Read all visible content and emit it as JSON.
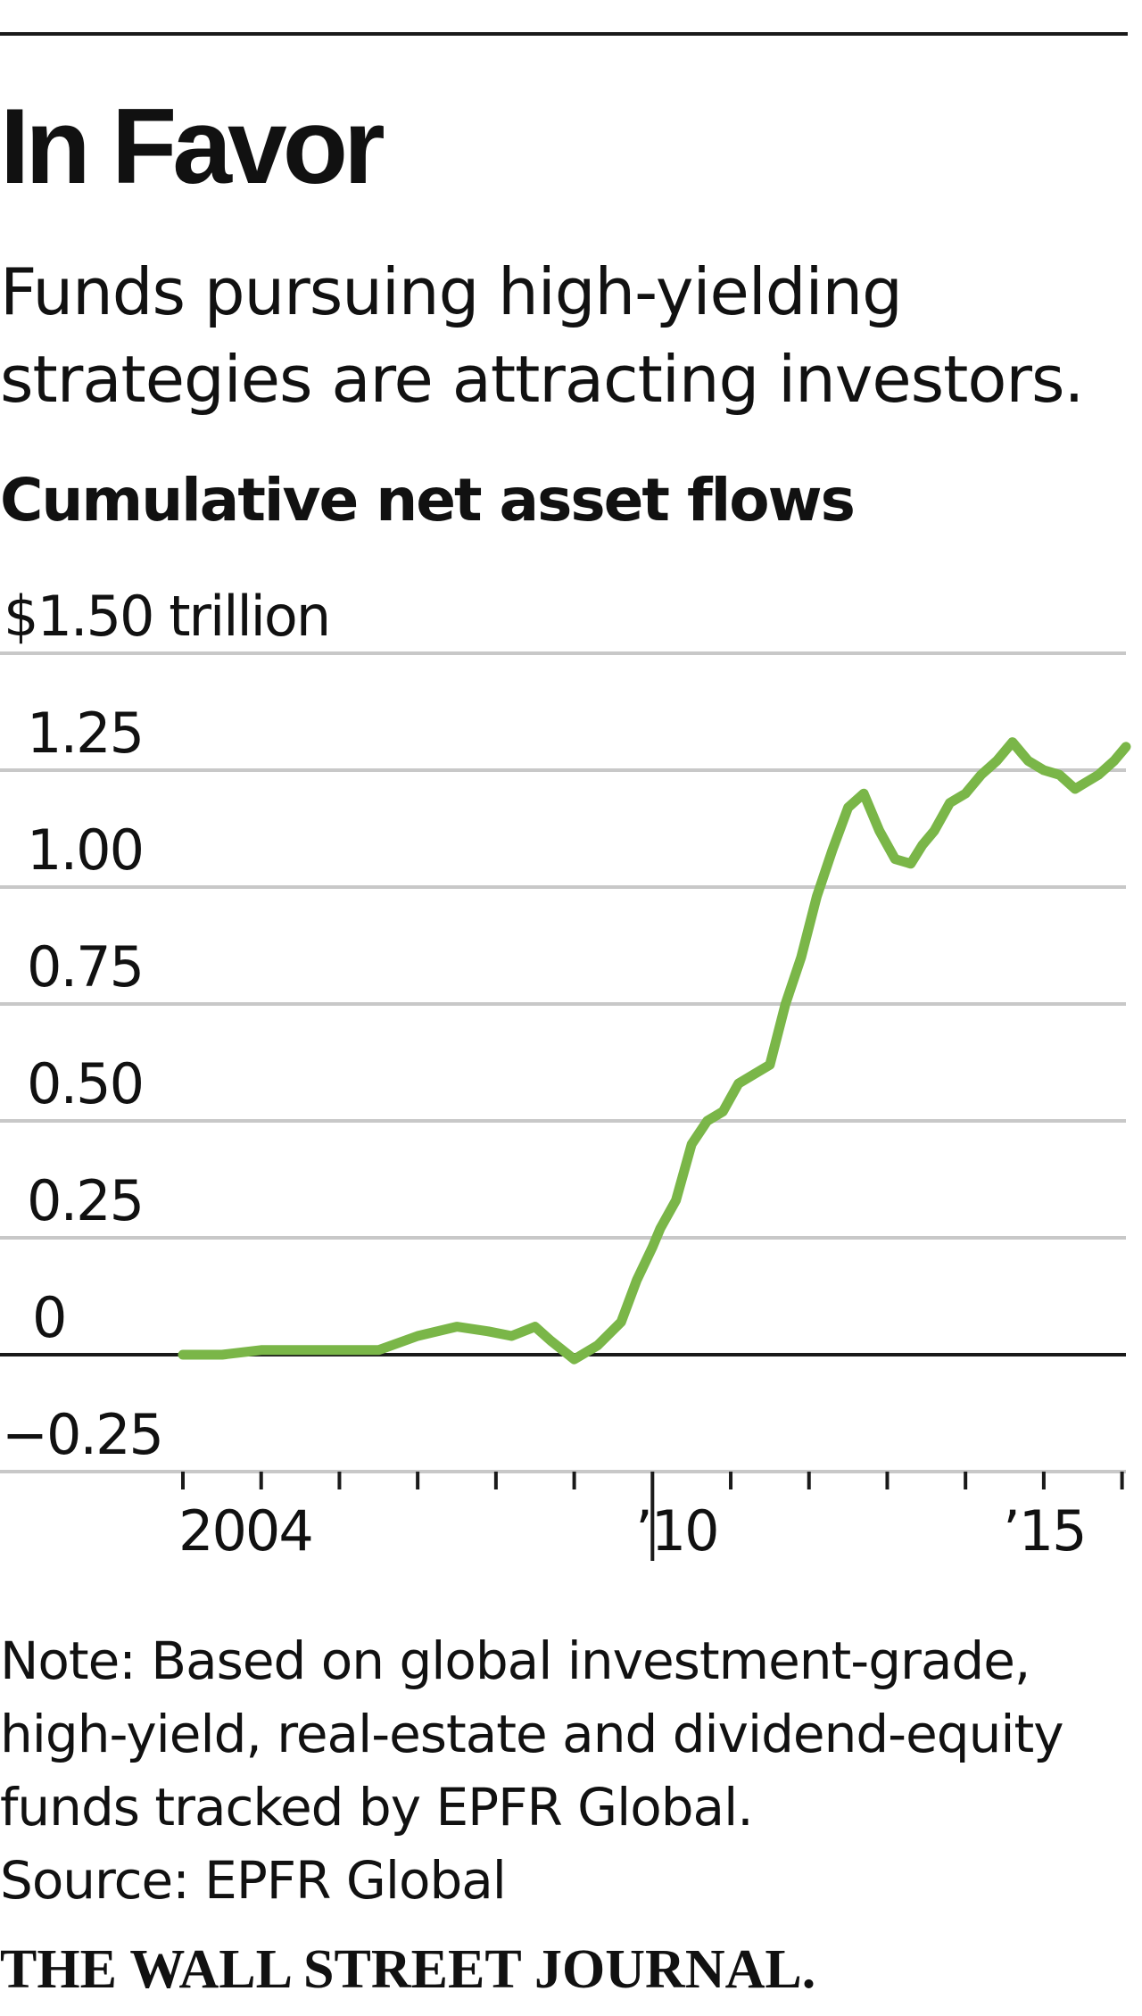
{
  "header": {
    "title": "In Favor",
    "subtitle": "Funds pursuing high-yielding strategies are attracting investors.",
    "section_label": "Cumulative net asset flows"
  },
  "footer": {
    "note": "Note: Based on global investment-grade, high-yield, real-estate and dividend-equity funds tracked by EPFR Global.",
    "source": "Source: EPFR Global",
    "logo": "THE WALL STREET JOURNAL."
  },
  "colors": {
    "series": "#7ab648",
    "gridline": "#c8c8c8",
    "zero_line": "#1a1a1a"
  },
  "chart_data": {
    "type": "line",
    "title": "Cumulative net asset flows",
    "ylabel": "",
    "xlabel": "",
    "ylim": [
      -0.25,
      1.5
    ],
    "xlim": [
      2004.0,
      2016.05
    ],
    "grid": true,
    "y_ticks": [
      {
        "value": 1.5,
        "label": "$1.50 trillion"
      },
      {
        "value": 1.25,
        "label": "1.25"
      },
      {
        "value": 1.0,
        "label": "1.00"
      },
      {
        "value": 0.75,
        "label": "0.75"
      },
      {
        "value": 0.5,
        "label": "0.50"
      },
      {
        "value": 0.25,
        "label": "0.25"
      },
      {
        "value": 0,
        "label": "0"
      },
      {
        "value": -0.25,
        "label": "−0.25"
      }
    ],
    "x_tick_years": [
      2004,
      2005,
      2006,
      2007,
      2008,
      2009,
      2010,
      2011,
      2012,
      2013,
      2014,
      2015,
      2016
    ],
    "x_tick_labels": [
      {
        "value": 2005,
        "label": "2004"
      },
      {
        "value": 2011,
        "label": "’10"
      },
      {
        "value": 2016,
        "label": "’15"
      }
    ],
    "series": [
      {
        "x": [
          2004.0,
          2004.5,
          2005.0,
          2005.5,
          2006.0,
          2006.5,
          2007.0,
          2007.5,
          2007.9,
          2008.2,
          2008.5,
          2008.7,
          2009.0,
          2009.3,
          2009.6,
          2009.8,
          2010.0,
          2010.1,
          2010.3,
          2010.5,
          2010.7,
          2010.9,
          2011.1,
          2011.3,
          2011.5,
          2011.7,
          2011.9,
          2012.1,
          2012.3,
          2012.5,
          2012.7,
          2012.9,
          2013.1,
          2013.3,
          2013.45,
          2013.6,
          2013.8,
          2014.0,
          2014.2,
          2014.4,
          2014.6,
          2014.8,
          2015.0,
          2015.2,
          2015.4,
          2015.5,
          2015.7,
          2015.9,
          2016.05
        ],
        "y": [
          0.0,
          0.0,
          0.01,
          0.01,
          0.01,
          0.01,
          0.04,
          0.06,
          0.05,
          0.04,
          0.06,
          0.03,
          -0.01,
          0.02,
          0.07,
          0.16,
          0.23,
          0.27,
          0.33,
          0.45,
          0.5,
          0.52,
          0.58,
          0.6,
          0.62,
          0.75,
          0.85,
          0.98,
          1.08,
          1.17,
          1.2,
          1.12,
          1.06,
          1.05,
          1.09,
          1.12,
          1.18,
          1.2,
          1.24,
          1.27,
          1.31,
          1.27,
          1.25,
          1.24,
          1.21,
          1.22,
          1.24,
          1.27,
          1.3
        ]
      }
    ]
  }
}
